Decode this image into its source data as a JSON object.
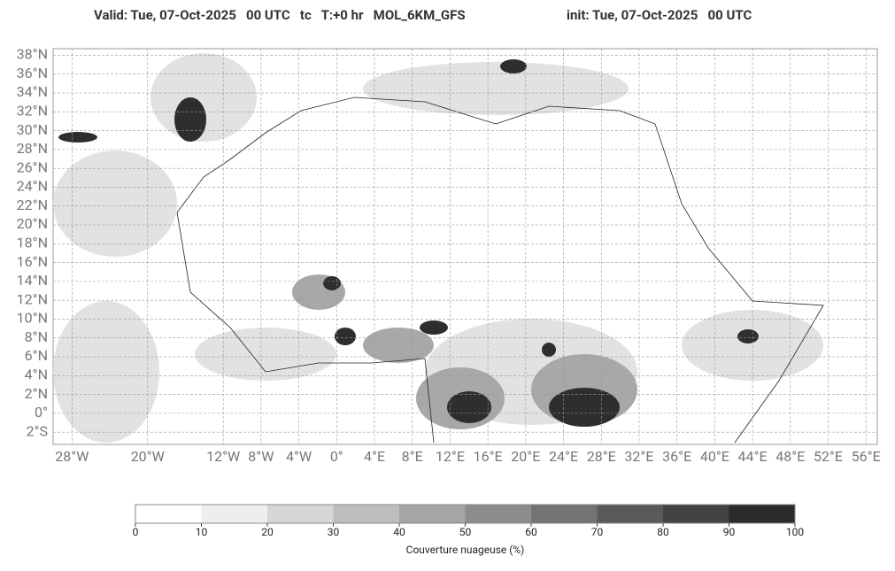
{
  "header": {
    "valid": "Valid: Tue, 07-Oct-2025   00 UTC   tc   T:+0 hr   MOL_6KM_GFS",
    "init": "init: Tue, 07-Oct-2025   00 UTC"
  },
  "map": {
    "lonlim": [
      -30,
      57.2
    ],
    "latlim": [
      -3.3,
      38.7
    ],
    "latticks": [
      {
        "value": 38,
        "label": "38°N"
      },
      {
        "value": 36,
        "label": "36°N"
      },
      {
        "value": 34,
        "label": "34°N"
      },
      {
        "value": 32,
        "label": "32°N"
      },
      {
        "value": 30,
        "label": "30°N"
      },
      {
        "value": 28,
        "label": "28°N"
      },
      {
        "value": 26,
        "label": "26°N"
      },
      {
        "value": 24,
        "label": "24°N"
      },
      {
        "value": 22,
        "label": "22°N"
      },
      {
        "value": 20,
        "label": "20°N"
      },
      {
        "value": 18,
        "label": "18°N"
      },
      {
        "value": 16,
        "label": "16°N"
      },
      {
        "value": 14,
        "label": "14°N"
      },
      {
        "value": 12,
        "label": "12°N"
      },
      {
        "value": 10,
        "label": "10°N"
      },
      {
        "value": 8,
        "label": "8°N"
      },
      {
        "value": 6,
        "label": "6°N"
      },
      {
        "value": 4,
        "label": "4°N"
      },
      {
        "value": 2,
        "label": "2°N"
      },
      {
        "value": 0,
        "label": "0°"
      },
      {
        "value": -2,
        "label": "2°S"
      }
    ],
    "lonticks": [
      {
        "value": -28,
        "label": "28°W"
      },
      {
        "value": -20,
        "label": "20°W"
      },
      {
        "value": -12,
        "label": "12°W"
      },
      {
        "value": -8,
        "label": "8°W"
      },
      {
        "value": -4,
        "label": "4°W"
      },
      {
        "value": 0,
        "label": "0°"
      },
      {
        "value": 4,
        "label": "4°E"
      },
      {
        "value": 8,
        "label": "8°E"
      },
      {
        "value": 12,
        "label": "12°E"
      },
      {
        "value": 16,
        "label": "16°E"
      },
      {
        "value": 20,
        "label": "20°E"
      },
      {
        "value": 24,
        "label": "24°E"
      },
      {
        "value": 28,
        "label": "28°E"
      },
      {
        "value": 32,
        "label": "32°E"
      },
      {
        "value": 36,
        "label": "36°E"
      },
      {
        "value": 40,
        "label": "40°E"
      },
      {
        "value": 44,
        "label": "44°E"
      },
      {
        "value": 48,
        "label": "48°E"
      },
      {
        "value": 52,
        "label": "52°E"
      },
      {
        "value": 56,
        "label": "56°E"
      }
    ]
  },
  "colorbar": {
    "lim": [
      0,
      100
    ],
    "ticks": [
      0,
      10,
      20,
      30,
      40,
      50,
      60,
      70,
      80,
      90,
      100
    ],
    "colors": [
      "#ffffff",
      "#eeeeee",
      "#d6d6d6",
      "#bdbdbd",
      "#a5a5a5",
      "#8c8c8c",
      "#737373",
      "#5a5a5a",
      "#424242",
      "#2b2b2b"
    ],
    "label": "Couverture nuageuse (%)"
  }
}
